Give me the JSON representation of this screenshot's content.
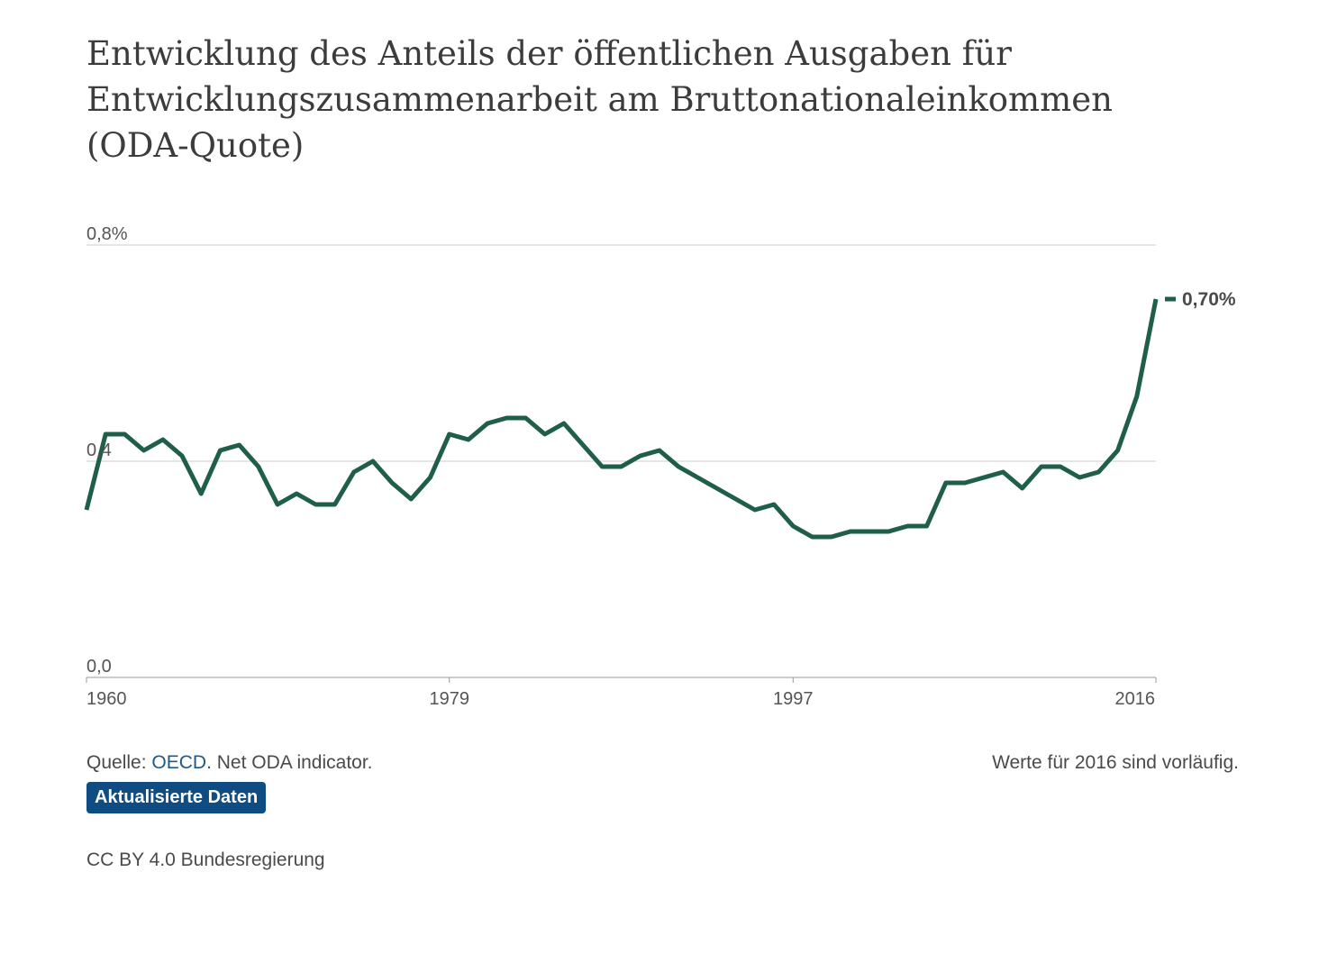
{
  "title": "Entwicklung des Anteils der öffentlichen Ausgaben für Entwicklungszusammenarbeit am Bruttonationaleinkommen (ODA-Quote)",
  "footer": {
    "source_label": "Quelle:",
    "source_link": "OECD.",
    "source_text": "Net ODA indicator.",
    "note": "Werte für 2016 sind vorläufig.",
    "update_button": "Aktualisierte Daten",
    "license": "CC BY 4.0 Bundesregierung"
  },
  "colors": {
    "line": "#1f5e4a",
    "link": "#1d5a8a",
    "button": "#0f4c81",
    "grid": "#cccccc"
  },
  "chart_data": {
    "type": "line",
    "title": "Entwicklung des Anteils der öffentlichen Ausgaben für Entwicklungszusammenarbeit am Bruttonationaleinkommen (ODA-Quote)",
    "xlabel": "",
    "ylabel": "",
    "x": [
      1960,
      1961,
      1962,
      1963,
      1964,
      1965,
      1966,
      1967,
      1968,
      1969,
      1970,
      1971,
      1972,
      1973,
      1974,
      1975,
      1976,
      1977,
      1978,
      1979,
      1980,
      1981,
      1982,
      1983,
      1984,
      1985,
      1986,
      1987,
      1988,
      1989,
      1990,
      1991,
      1992,
      1993,
      1994,
      1995,
      1996,
      1997,
      1998,
      1999,
      2000,
      2001,
      2002,
      2003,
      2004,
      2005,
      2006,
      2007,
      2008,
      2009,
      2010,
      2011,
      2012,
      2013,
      2014,
      2015,
      2016
    ],
    "series": [
      {
        "values": [
          0.31,
          0.45,
          0.45,
          0.42,
          0.44,
          0.41,
          0.34,
          0.42,
          0.43,
          0.39,
          0.32,
          0.34,
          0.32,
          0.32,
          0.38,
          0.4,
          0.36,
          0.33,
          0.37,
          0.45,
          0.44,
          0.47,
          0.48,
          0.48,
          0.45,
          0.47,
          0.43,
          0.39,
          0.39,
          0.41,
          0.42,
          0.39,
          0.37,
          0.35,
          0.33,
          0.31,
          0.32,
          0.28,
          0.26,
          0.26,
          0.27,
          0.27,
          0.27,
          0.28,
          0.28,
          0.36,
          0.36,
          0.37,
          0.38,
          0.35,
          0.39,
          0.39,
          0.37,
          0.38,
          0.42,
          0.52,
          0.7
        ]
      }
    ],
    "x_ticks": [
      "1960",
      "1979",
      "1997",
      "2016"
    ],
    "y_ticks": [
      "0,0",
      "0,4",
      "0,8%"
    ],
    "xlim": [
      1960,
      2016
    ],
    "ylim": [
      0,
      0.8
    ],
    "grid": true,
    "end_label": "0,70%"
  }
}
